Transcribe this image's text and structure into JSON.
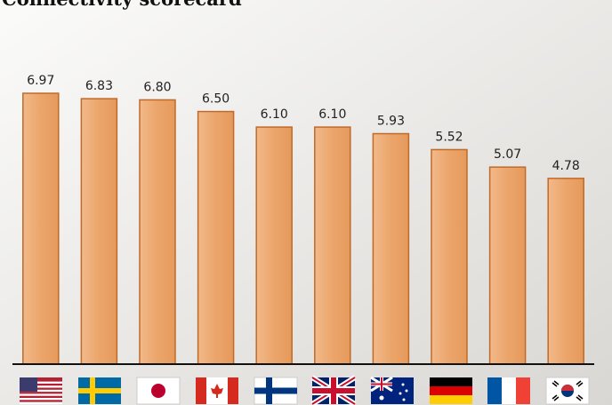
{
  "chart_data": {
    "type": "bar",
    "title": "Connectivity scorecard",
    "categories": [
      null,
      null,
      null,
      null,
      null,
      null,
      null,
      null,
      null,
      null
    ],
    "values": [
      6.97,
      6.83,
      6.8,
      6.5,
      6.1,
      6.1,
      5.93,
      5.52,
      5.07,
      4.78
    ],
    "value_labels": [
      "6.97",
      "6.83",
      "6.80",
      "6.50",
      "6.10",
      "6.10",
      "5.93",
      "5.52",
      "5.07",
      "4.78"
    ],
    "color": "#eba56b"
  }
}
